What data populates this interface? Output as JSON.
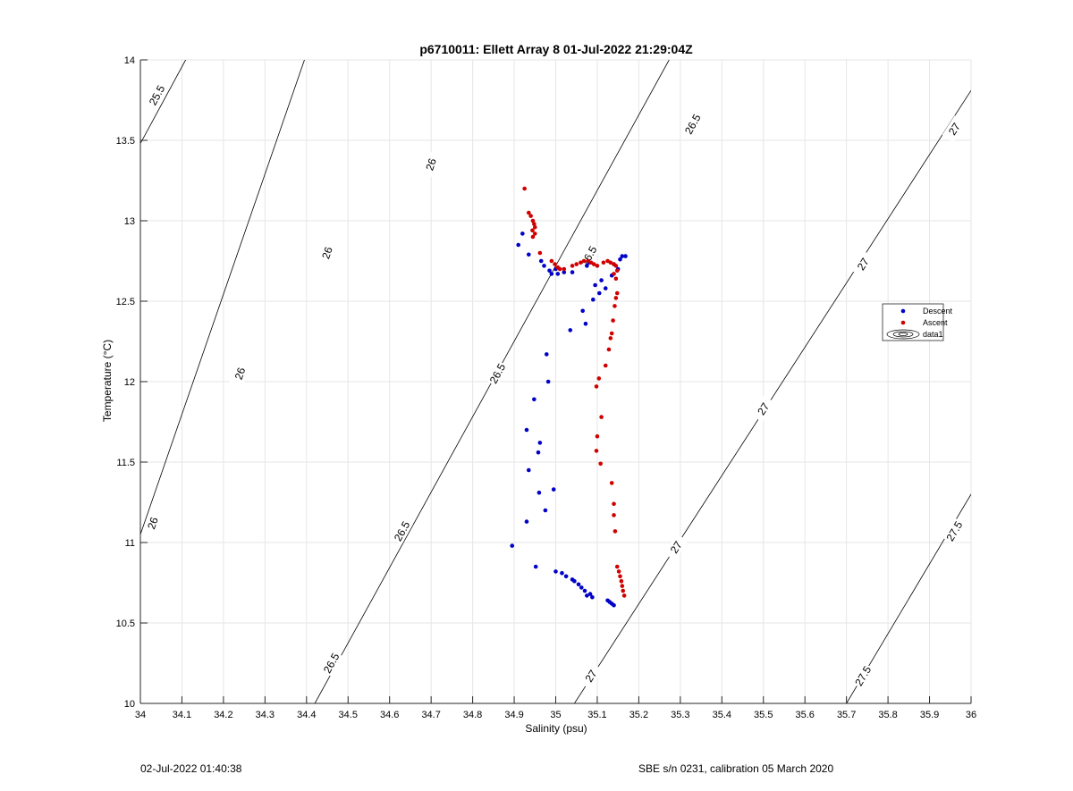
{
  "footer": {
    "timestamp": "02-Jul-2022 01:40:38",
    "calibration": "SBE s/n 0231, calibration 05 March 2020"
  },
  "colors": {
    "descent": "#0000c8",
    "ascent": "#d00000",
    "grid": "#e6e6e6",
    "contour": "#000000"
  },
  "chart_data": {
    "type": "scatter",
    "title": "p6710011: Ellett Array 8 01-Jul-2022 21:29:04Z",
    "xlabel": "Salinity (psu)",
    "ylabel": "Temperature (°C)",
    "xlim": [
      34,
      36
    ],
    "ylim": [
      10,
      14
    ],
    "grid": true,
    "legend_position": "right",
    "xticks": [
      "34",
      "34.1",
      "34.2",
      "34.3",
      "34.4",
      "34.5",
      "34.6",
      "34.7",
      "34.8",
      "34.9",
      "35",
      "35.1",
      "35.2",
      "35.3",
      "35.4",
      "35.5",
      "35.6",
      "35.7",
      "35.8",
      "35.9",
      "36"
    ],
    "yticks": [
      "10",
      "10.5",
      "11",
      "11.5",
      "12",
      "12.5",
      "13",
      "13.5",
      "14"
    ],
    "contours": [
      {
        "label": "25.5",
        "points": [
          [
            34.0,
            13.48
          ],
          [
            34.109,
            14.0
          ]
        ],
        "labels_at": [
          [
            34.04,
            13.78
          ]
        ]
      },
      {
        "label": "26",
        "points": [
          [
            34.0,
            11.05
          ],
          [
            34.395,
            14.0
          ]
        ],
        "labels_at": [
          [
            34.03,
            11.12
          ],
          [
            34.24,
            12.05
          ],
          [
            34.45,
            12.8
          ],
          [
            34.7,
            13.35
          ]
        ]
      },
      {
        "label": "26.5",
        "points": [
          [
            34.42,
            10.0
          ],
          [
            35.273,
            14.0
          ]
        ],
        "labels_at": [
          [
            34.46,
            10.25
          ],
          [
            34.63,
            11.07
          ],
          [
            34.86,
            12.05
          ],
          [
            35.08,
            12.78
          ],
          [
            35.33,
            13.6
          ]
        ]
      },
      {
        "label": "27",
        "points": [
          [
            35.045,
            10.0
          ],
          [
            36.0,
            13.81
          ]
        ],
        "labels_at": [
          [
            35.085,
            10.17
          ],
          [
            35.29,
            10.97
          ],
          [
            35.5,
            11.83
          ],
          [
            35.74,
            12.73
          ],
          [
            35.96,
            13.57
          ]
        ]
      },
      {
        "label": "27.5",
        "points": [
          [
            35.7,
            10.0
          ],
          [
            36.0,
            11.3
          ]
        ],
        "labels_at": [
          [
            35.74,
            10.17
          ],
          [
            35.96,
            11.07
          ]
        ]
      }
    ],
    "series": [
      {
        "name": "Descent",
        "color": "#0000c8",
        "points": [
          [
            34.895,
            10.98
          ],
          [
            34.952,
            10.85
          ],
          [
            35.0,
            10.82
          ],
          [
            35.015,
            10.81
          ],
          [
            35.025,
            10.79
          ],
          [
            35.04,
            10.77
          ],
          [
            35.045,
            10.76
          ],
          [
            35.055,
            10.74
          ],
          [
            35.062,
            10.72
          ],
          [
            35.07,
            10.7
          ],
          [
            35.075,
            10.67
          ],
          [
            35.083,
            10.68
          ],
          [
            35.088,
            10.66
          ],
          [
            35.125,
            10.64
          ],
          [
            35.13,
            10.63
          ],
          [
            35.135,
            10.62
          ],
          [
            35.14,
            10.61
          ],
          [
            34.93,
            11.13
          ],
          [
            34.975,
            11.2
          ],
          [
            34.96,
            11.31
          ],
          [
            34.995,
            11.33
          ],
          [
            34.935,
            11.45
          ],
          [
            34.958,
            11.56
          ],
          [
            34.962,
            11.62
          ],
          [
            34.93,
            11.7
          ],
          [
            34.948,
            11.89
          ],
          [
            34.982,
            12.0
          ],
          [
            34.978,
            12.17
          ],
          [
            35.035,
            12.32
          ],
          [
            35.072,
            12.36
          ],
          [
            35.065,
            12.44
          ],
          [
            35.09,
            12.51
          ],
          [
            35.105,
            12.55
          ],
          [
            35.12,
            12.58
          ],
          [
            35.095,
            12.6
          ],
          [
            35.11,
            12.63
          ],
          [
            35.135,
            12.66
          ],
          [
            35.15,
            12.7
          ],
          [
            35.14,
            12.73
          ],
          [
            35.155,
            12.76
          ],
          [
            35.16,
            12.78
          ],
          [
            35.168,
            12.78
          ],
          [
            34.91,
            12.85
          ],
          [
            34.92,
            12.92
          ],
          [
            34.935,
            12.79
          ],
          [
            34.965,
            12.75
          ],
          [
            34.972,
            12.72
          ],
          [
            34.985,
            12.69
          ],
          [
            34.99,
            12.67
          ],
          [
            35.005,
            12.67
          ],
          [
            35.0,
            12.7
          ],
          [
            35.02,
            12.68
          ],
          [
            35.04,
            12.68
          ],
          [
            35.075,
            12.72
          ],
          [
            35.08,
            12.74
          ]
        ]
      },
      {
        "name": "Ascent",
        "color": "#d00000",
        "points": [
          [
            34.925,
            13.2
          ],
          [
            34.935,
            13.05
          ],
          [
            34.94,
            13.03
          ],
          [
            34.945,
            13.0
          ],
          [
            34.948,
            12.98
          ],
          [
            34.95,
            12.96
          ],
          [
            34.944,
            12.94
          ],
          [
            34.95,
            12.92
          ],
          [
            34.945,
            12.9
          ],
          [
            34.962,
            12.8
          ],
          [
            34.99,
            12.75
          ],
          [
            34.998,
            12.73
          ],
          [
            35.005,
            12.71
          ],
          [
            35.01,
            12.7
          ],
          [
            35.02,
            12.7
          ],
          [
            35.04,
            12.72
          ],
          [
            35.05,
            12.73
          ],
          [
            35.06,
            12.74
          ],
          [
            35.068,
            12.75
          ],
          [
            35.078,
            12.75
          ],
          [
            35.085,
            12.74
          ],
          [
            35.092,
            12.73
          ],
          [
            35.1,
            12.72
          ],
          [
            35.115,
            12.74
          ],
          [
            35.125,
            12.75
          ],
          [
            35.132,
            12.74
          ],
          [
            35.14,
            12.73
          ],
          [
            35.145,
            12.72
          ],
          [
            35.148,
            12.69
          ],
          [
            35.14,
            12.67
          ],
          [
            35.145,
            12.64
          ],
          [
            35.148,
            12.55
          ],
          [
            35.145,
            12.52
          ],
          [
            35.142,
            12.47
          ],
          [
            35.138,
            12.38
          ],
          [
            35.135,
            12.3
          ],
          [
            35.132,
            12.27
          ],
          [
            35.128,
            12.2
          ],
          [
            35.12,
            12.1
          ],
          [
            35.104,
            12.02
          ],
          [
            35.098,
            11.97
          ],
          [
            35.11,
            11.78
          ],
          [
            35.1,
            11.66
          ],
          [
            35.098,
            11.57
          ],
          [
            35.108,
            11.49
          ],
          [
            35.135,
            11.37
          ],
          [
            35.14,
            11.24
          ],
          [
            35.14,
            11.17
          ],
          [
            35.143,
            11.07
          ],
          [
            35.148,
            10.85
          ],
          [
            35.152,
            10.82
          ],
          [
            35.155,
            10.79
          ],
          [
            35.158,
            10.76
          ],
          [
            35.16,
            10.73
          ],
          [
            35.162,
            10.7
          ],
          [
            35.165,
            10.67
          ]
        ]
      }
    ],
    "legend": [
      "Descent",
      "Ascent",
      "data1"
    ]
  }
}
